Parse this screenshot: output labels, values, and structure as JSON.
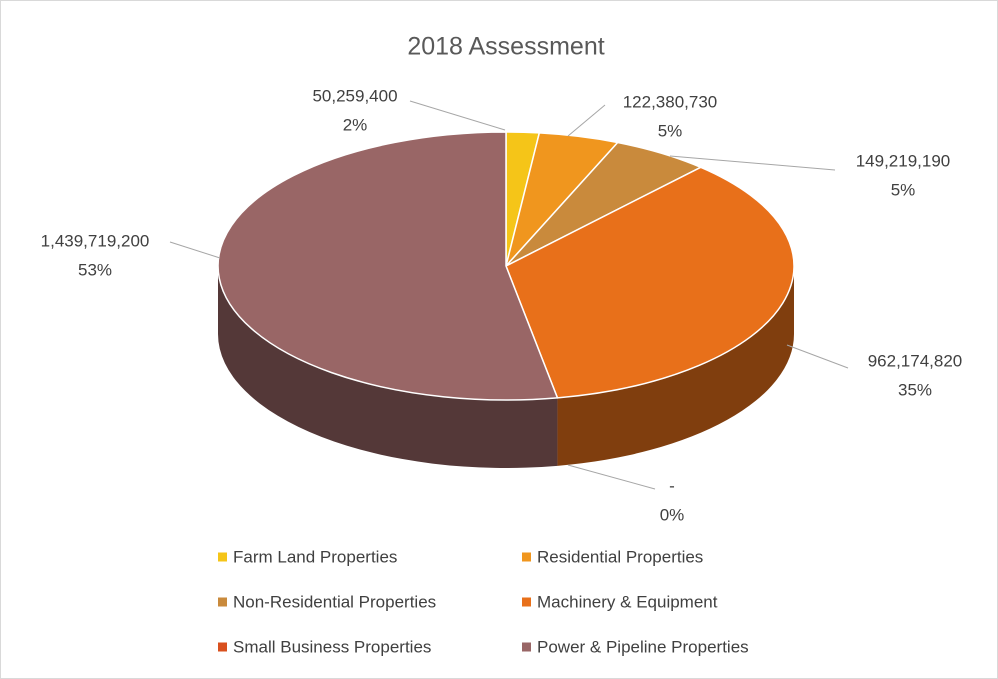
{
  "chart_data": {
    "type": "pie3d",
    "title": "2018 Assessment",
    "categories": [
      "Farm Land Properties",
      "Residential Properties",
      "Non-Residential Properties",
      "Machinery & Equipment",
      "Small Business Properties",
      "Power & Pipeline Properties"
    ],
    "values": [
      50259400,
      122380730,
      149219190,
      962174820,
      0,
      1439719200
    ],
    "value_labels": [
      "50,259,400",
      "122,380,730",
      "149,219,190",
      "962,174,820",
      "-",
      "1,439,719,200"
    ],
    "percent_labels": [
      "2%",
      "5%",
      "5%",
      "35%",
      "0%",
      "53%"
    ],
    "colors": [
      "#f5c518",
      "#f0961e",
      "#c98a3c",
      "#e8701a",
      "#d9501e",
      "#996666"
    ],
    "legend": "bottom"
  }
}
